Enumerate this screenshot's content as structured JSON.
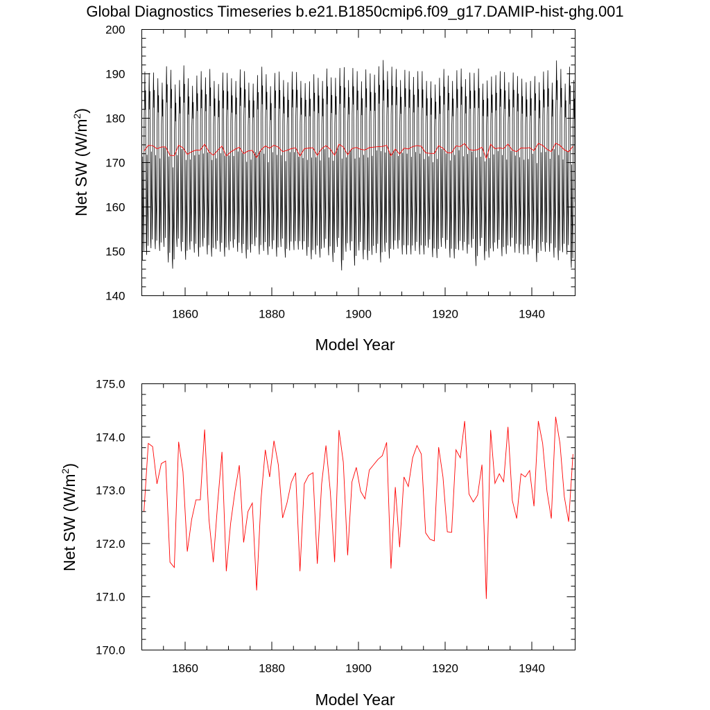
{
  "title": "Global Diagnostics Timeseries b.e21.B1850cmip6.f09_g17.DAMIP-hist-ghg.001",
  "colors": {
    "monthly": "#000000",
    "annual": "#ff0000"
  },
  "chart_data": [
    {
      "type": "line",
      "xlabel": "Model Year",
      "ylabel_main": "Net SW (W/m",
      "ylabel_sup": "2",
      "ylabel_close": ")",
      "xlim": [
        1850,
        1950
      ],
      "ylim": [
        140,
        200
      ],
      "xticks": [
        1860,
        1880,
        1900,
        1920,
        1940
      ],
      "yticks": [
        140,
        150,
        160,
        170,
        180,
        190,
        200
      ],
      "ytick_labels": [
        "140",
        "150",
        "160",
        "170",
        "180",
        "190",
        "200"
      ],
      "series": [
        {
          "style": "monthly",
          "x_start": 1850.0417,
          "x_step": 0.08333,
          "annual_max": [
            190.5,
            190.2,
            190.3,
            189.0,
            188.0,
            191.7,
            190.9,
            187.6,
            188.6,
            191.9,
            189.0,
            187.3,
            189.6,
            190.6,
            189.2,
            191.1,
            188.4,
            187.7,
            190.3,
            190.2,
            189.0,
            188.4,
            191.0,
            190.6,
            188.0,
            187.8,
            189.7,
            191.6,
            189.9,
            187.2,
            190.2,
            190.5,
            188.6,
            188.1,
            190.5,
            190.4,
            188.4,
            187.9,
            188.3,
            189.9,
            189.1,
            188.4,
            191.2,
            189.2,
            189.1,
            191.3,
            191.5,
            188.6,
            191.3,
            190.6,
            188.3,
            191.0,
            190.1,
            189.8,
            191.7,
            193.1,
            190.6,
            191.6,
            191.1,
            188.6,
            190.9,
            190.6,
            189.3,
            190.6,
            190.6,
            188.4,
            188.3,
            187.6,
            189.1,
            191.1,
            189.6,
            188.4,
            190.8,
            191.2,
            188.8,
            190.3,
            190.2,
            191.2,
            187.8,
            188.5,
            189.4,
            189.7,
            190.6,
            190.4,
            188.1,
            190.3,
            189.5,
            188.9,
            188.1,
            188.4,
            189.5,
            188.1,
            190.5,
            190.8,
            188.0,
            193.0,
            191.1,
            187.8,
            191.6,
            188.6
          ],
          "annual_min": [
            148.0,
            149.2,
            150.7,
            150.5,
            150.1,
            151.0,
            147.5,
            146.1,
            151.0,
            150.0,
            148.1,
            150.4,
            149.7,
            148.8,
            151.1,
            149.3,
            148.8,
            150.5,
            149.9,
            148.8,
            150.3,
            150.8,
            149.9,
            149.6,
            148.4,
            149.7,
            151.2,
            149.3,
            150.1,
            149.2,
            150.5,
            148.8,
            151.0,
            148.6,
            150.2,
            150.3,
            150.4,
            150.4,
            149.0,
            148.2,
            149.3,
            148.6,
            150.8,
            149.1,
            147.6,
            151.0,
            145.7,
            149.9,
            150.2,
            146.8,
            150.2,
            148.2,
            148.0,
            149.2,
            149.6,
            147.5,
            149.9,
            148.4,
            150.4,
            150.6,
            149.3,
            149.3,
            149.3,
            150.1,
            149.3,
            149.3,
            150.8,
            148.7,
            148.5,
            151.0,
            150.6,
            148.6,
            148.4,
            150.3,
            150.2,
            149.5,
            150.8,
            146.7,
            151.2,
            148.0,
            148.6,
            150.0,
            150.6,
            148.9,
            149.4,
            151.1,
            149.7,
            149.6,
            149.3,
            149.3,
            150.6,
            147.6,
            150.1,
            149.9,
            149.9,
            148.6,
            148.0,
            149.8,
            149.3,
            146.3
          ]
        },
        {
          "style": "annual",
          "ref": "annual_means"
        }
      ]
    },
    {
      "type": "line",
      "xlabel": "Model Year",
      "ylabel_main": "Net SW (W/m",
      "ylabel_sup": "2",
      "ylabel_close": ")",
      "xlim": [
        1850,
        1950
      ],
      "ylim": [
        170,
        175
      ],
      "xticks": [
        1860,
        1880,
        1900,
        1920,
        1940
      ],
      "yticks": [
        170,
        171,
        172,
        173,
        174,
        175
      ],
      "ytick_labels": [
        "170.0",
        "171.0",
        "172.0",
        "173.0",
        "174.0",
        "175.0"
      ],
      "series": [
        {
          "style": "annual",
          "ref": "annual_means"
        }
      ]
    }
  ],
  "annual_means": {
    "x_start": 1850.5,
    "x_step": 1,
    "values": [
      172.6,
      173.88,
      173.82,
      173.12,
      173.5,
      173.55,
      171.65,
      171.55,
      173.91,
      173.35,
      171.85,
      172.45,
      172.82,
      172.82,
      174.14,
      172.45,
      171.65,
      172.75,
      173.72,
      171.48,
      172.38,
      172.98,
      173.47,
      172.02,
      172.6,
      172.76,
      171.12,
      172.82,
      173.76,
      173.25,
      173.93,
      173.48,
      172.48,
      172.76,
      173.15,
      173.33,
      171.48,
      173.12,
      173.28,
      173.33,
      171.62,
      173.12,
      173.84,
      172.98,
      171.65,
      174.13,
      173.53,
      171.78,
      173.16,
      173.43,
      172.98,
      172.84,
      173.38,
      173.48,
      173.58,
      173.65,
      173.9,
      171.53,
      173.06,
      171.93,
      173.25,
      173.07,
      173.61,
      173.84,
      173.68,
      172.2,
      172.08,
      172.05,
      173.81,
      173.25,
      172.22,
      172.21,
      173.76,
      173.61,
      174.3,
      172.93,
      172.78,
      172.91,
      173.48,
      170.96,
      174.13,
      173.13,
      173.31,
      173.16,
      174.19,
      172.81,
      172.47,
      173.31,
      173.25,
      173.37,
      172.7,
      174.3,
      173.88,
      172.98,
      172.47,
      174.38,
      173.88,
      172.88,
      172.41,
      173.68
    ]
  }
}
